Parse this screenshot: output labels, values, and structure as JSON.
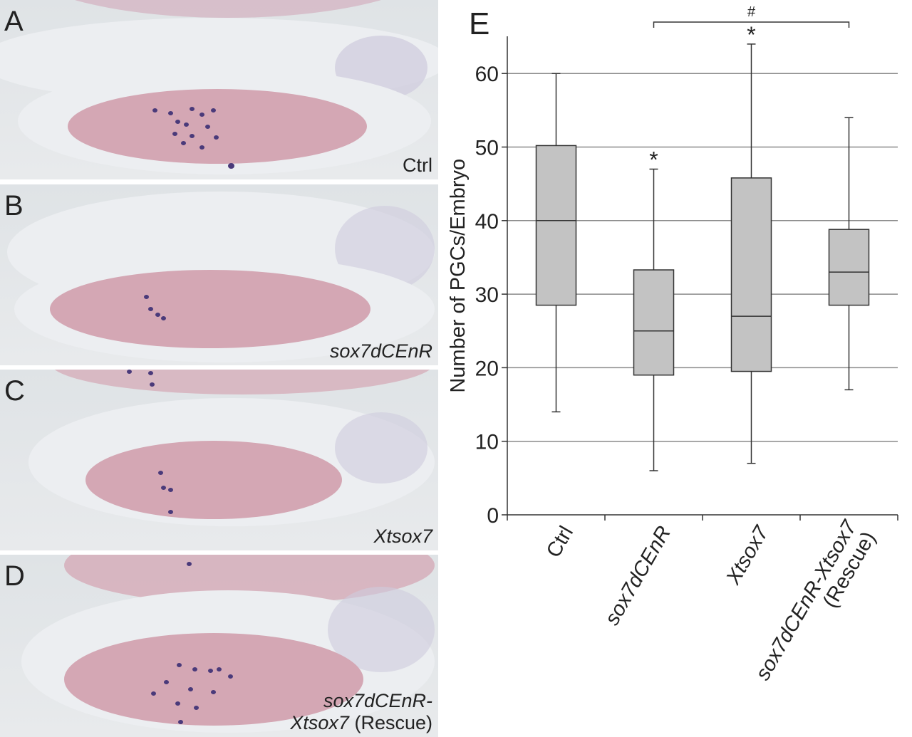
{
  "panels": [
    {
      "letter": "A",
      "label_lines": [
        "Ctrl"
      ],
      "italic": false
    },
    {
      "letter": "B",
      "label_lines": [
        "sox7dCEnR"
      ],
      "italic": true
    },
    {
      "letter": "C",
      "label_lines": [
        "Xtsox7"
      ],
      "italic": true
    },
    {
      "letter": "D",
      "label_lines": [
        "sox7dCEnR-",
        "Xtsox7",
        "(Rescue)"
      ],
      "italic": "mixed"
    }
  ],
  "chart_data": {
    "type": "box",
    "panel_letter": "E",
    "ylabel": "Number of PGCs/Embryo",
    "ylim": [
      0,
      65
    ],
    "yticks": [
      0,
      10,
      20,
      30,
      40,
      50,
      60
    ],
    "grid": true,
    "categories": [
      "Ctrl",
      "sox7dCEnR",
      "Xtsox7",
      "sox7dCEnR-Xtsox7 (Rescue)"
    ],
    "category_lines": [
      [
        "Ctrl"
      ],
      [
        "sox7dCEnR"
      ],
      [
        "Xtsox7"
      ],
      [
        "sox7dCEnR-Xtsox7",
        "(Rescue)"
      ]
    ],
    "boxes": [
      {
        "min": 14,
        "q1": 28.5,
        "median": 40,
        "q3": 50.2,
        "max": 60,
        "marker": ""
      },
      {
        "min": 6,
        "q1": 19,
        "median": 25,
        "q3": 33.3,
        "max": 47,
        "marker": "*"
      },
      {
        "min": 7,
        "q1": 19.5,
        "median": 27,
        "q3": 45.8,
        "max": 64,
        "marker": "*"
      },
      {
        "min": 17,
        "q1": 28.5,
        "median": 33,
        "q3": 38.8,
        "max": 54,
        "marker": ""
      }
    ],
    "bracket": {
      "from": 1,
      "to": 3,
      "symbol": "#"
    },
    "colors": {
      "box_fill": "#c3c3c3",
      "stroke": "#333333",
      "grid": "#8a8a8a"
    }
  }
}
